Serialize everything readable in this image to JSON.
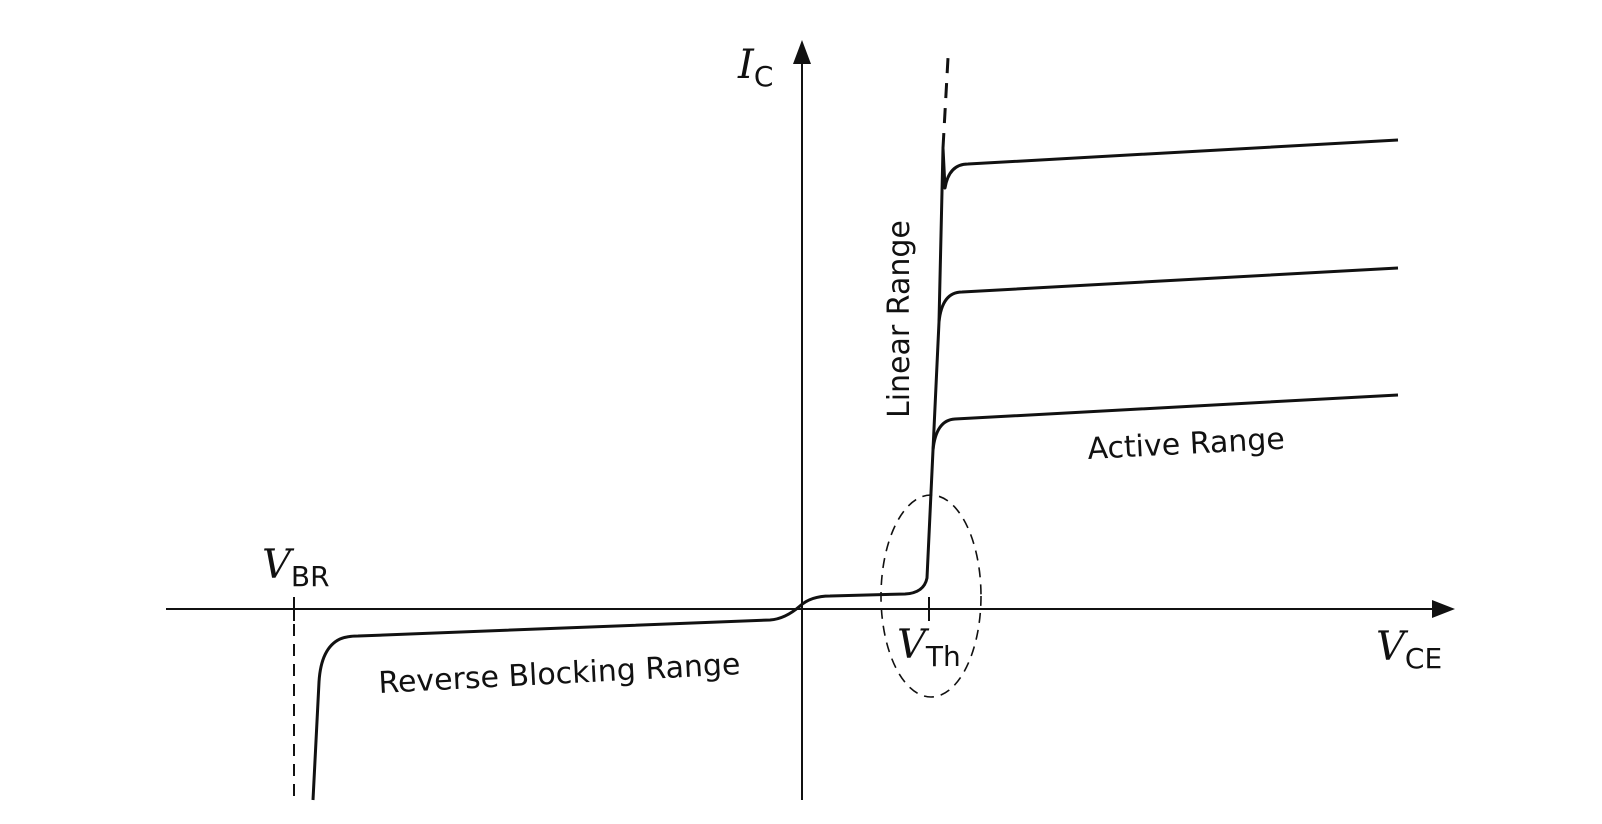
{
  "axes": {
    "y_label": {
      "symbol": "I",
      "subscript": "C"
    },
    "x_label": {
      "symbol": "V",
      "subscript": "CE"
    }
  },
  "markers": {
    "breakdown": {
      "symbol": "V",
      "subscript": "BR"
    },
    "threshold": {
      "symbol": "V",
      "subscript": "Th"
    }
  },
  "regions": {
    "linear": "Linear Range",
    "active": "Active Range",
    "reverse_blocking": "Reverse Blocking Range"
  },
  "colors": {
    "line": "#111111",
    "background": "#ffffff"
  }
}
